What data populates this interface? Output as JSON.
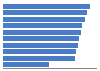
{
  "chart_data": {
    "type": "bar",
    "orientation": "horizontal",
    "values": [
      5.8,
      5.6,
      5.5,
      5.3,
      5.2,
      5.1,
      5.0,
      4.9,
      4.8,
      3.1
    ],
    "color": "#4a7cc7",
    "xlim": [
      0,
      6.3
    ],
    "tick_labels": false,
    "grid": false
  }
}
